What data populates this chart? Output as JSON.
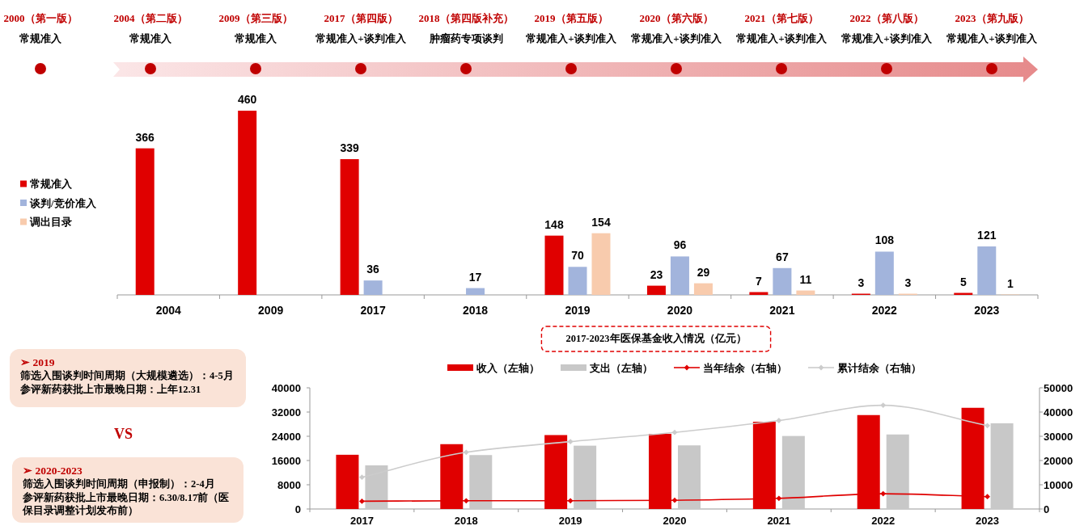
{
  "chart_data": [
    {
      "type": "other",
      "categories": [
        "2000（第一版）",
        "2004（第二版）",
        "2009（第三版）",
        "2017（第四版）",
        "2018（第四版补充）",
        "2019（第五版）",
        "2020（第六版）",
        "2021（第七版）",
        "2022（第八版）",
        "2023（第九版）"
      ],
      "annotations": [
        "常规准入",
        "常规准入",
        "常规准入",
        "常规准入+谈判准入",
        "肿瘤药专项谈判",
        "常规准入+谈判准入",
        "常规准入+谈判准入",
        "常规准入+谈判准入",
        "常规准入+谈判准入",
        "常规准入+谈判准入"
      ]
    },
    {
      "type": "bar",
      "categories": [
        "2004",
        "2009",
        "2017",
        "2018",
        "2019",
        "2020",
        "2021",
        "2022",
        "2023"
      ],
      "series": [
        {
          "name": "常规准入",
          "color": "#e00000",
          "values": [
            366,
            460,
            339,
            null,
            148,
            23,
            7,
            3,
            5
          ]
        },
        {
          "name": "谈判/竞价准入",
          "color": "#a2b4dc",
          "values": [
            null,
            null,
            36,
            17,
            70,
            96,
            67,
            108,
            121
          ]
        },
        {
          "name": "调出目录",
          "color": "#f8cbad",
          "values": [
            null,
            null,
            null,
            null,
            154,
            29,
            11,
            3,
            1
          ]
        }
      ],
      "data_labels": true,
      "legend": "left"
    },
    {
      "type": "other",
      "title": "➢ 2019",
      "annotations": [
        "筛选入围谈判时间周期（大规模遴选）：4-5月",
        "参评新药获批上市最晚日期：上年12.31"
      ]
    },
    {
      "type": "other",
      "title": "VS"
    },
    {
      "type": "other",
      "title": "➢ 2020-2023",
      "annotations": [
        "筛选入围谈判时间周期（申报制）：2-4月",
        "参评新药获批上市最晚日期：6.30/8.17前（医保目录调整计划发布前）"
      ]
    },
    {
      "type": "bar",
      "title": "2017-2023年医保基金收入情况（亿元）",
      "categories": [
        "2017",
        "2018",
        "2019",
        "2020",
        "2021",
        "2022",
        "2023"
      ],
      "series": [
        {
          "name": "收入（左轴）",
          "color": "#e00000",
          "values": [
            17900,
            21400,
            24400,
            24800,
            28800,
            31000,
            33400
          ]
        },
        {
          "name": "支出（左轴）",
          "color": "#c8c8c8",
          "values": [
            14400,
            17800,
            20900,
            21000,
            24100,
            24600,
            28300
          ]
        },
        {
          "name": "当年结余（右轴）",
          "type": "line",
          "axis": "y2",
          "color": "#e00000",
          "values": [
            3200,
            3400,
            3400,
            3600,
            4400,
            6300,
            5100
          ]
        },
        {
          "name": "累计结余（右轴）",
          "type": "line",
          "axis": "y2",
          "color": "#cccccc",
          "values": [
            13100,
            23400,
            27800,
            31600,
            36500,
            42800,
            34400
          ]
        }
      ],
      "ylim": [
        0,
        40000
      ],
      "yticks": [
        0,
        8000,
        16000,
        24000,
        32000,
        40000
      ],
      "y2lim": [
        0,
        50000
      ],
      "y2ticks": [
        0,
        10000,
        20000,
        30000,
        40000,
        50000
      ],
      "legend": "top",
      "marker": "diamond"
    }
  ]
}
